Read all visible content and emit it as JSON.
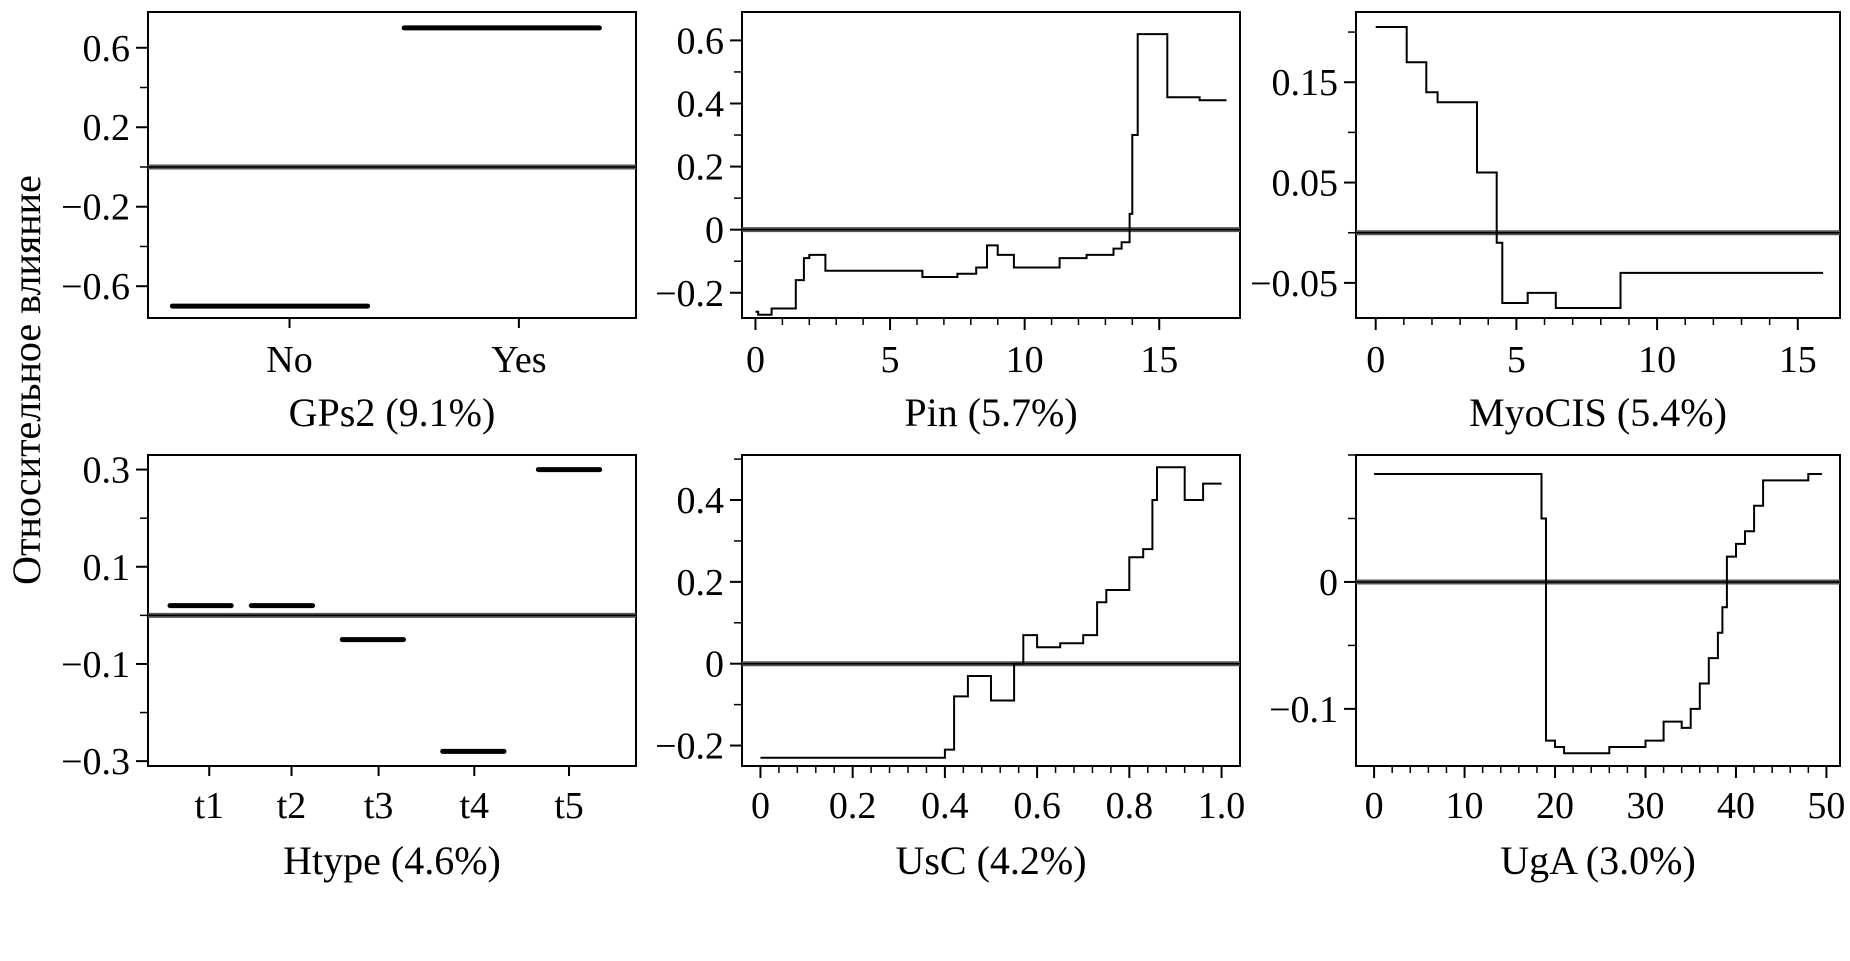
{
  "figure": {
    "ylabel": "Относительное влияние"
  },
  "chart_data": [
    {
      "type": "step",
      "xlabel": "GPs2 (9.1%)",
      "categories": [
        "No",
        "Yes"
      ],
      "values": [
        -0.7,
        0.7
      ],
      "ylim": [
        -0.76,
        0.78
      ],
      "yticks": [
        -0.6,
        -0.2,
        0.2,
        0.6
      ],
      "ytick_labels": [
        "−0.6",
        "−0.2",
        "0.2",
        "0.6"
      ],
      "baseline": 0
    },
    {
      "type": "line",
      "xlabel": "Pin (5.7%)",
      "x": [
        0,
        0.1,
        0.6,
        1.3,
        1.5,
        1.8,
        2.0,
        2.6,
        3.5,
        5.0,
        6.2,
        7.5,
        8.2,
        8.6,
        9.0,
        9.6,
        10.5,
        11.3,
        12.3,
        13.3,
        13.6,
        13.9,
        14.0,
        14.2,
        15.1,
        15.3,
        16.5,
        17.5
      ],
      "y": [
        -0.26,
        -0.27,
        -0.25,
        -0.25,
        -0.16,
        -0.09,
        -0.08,
        -0.13,
        -0.13,
        -0.13,
        -0.15,
        -0.14,
        -0.12,
        -0.05,
        -0.08,
        -0.12,
        -0.12,
        -0.09,
        -0.08,
        -0.06,
        -0.04,
        0.05,
        0.3,
        0.62,
        0.62,
        0.42,
        0.41,
        0.41
      ],
      "xlim": [
        -0.5,
        18
      ],
      "ylim": [
        -0.28,
        0.69
      ],
      "xticks": [
        0,
        5,
        10,
        15
      ],
      "yticks": [
        -0.2,
        0,
        0.2,
        0.4,
        0.6
      ],
      "ytick_labels": [
        "−0.2",
        "0",
        "0.2",
        "0.4",
        "0.6"
      ],
      "baseline": 0
    },
    {
      "type": "line",
      "xlabel": "MyoCIS (5.4%)",
      "x": [
        0,
        0.8,
        1.1,
        1.5,
        1.8,
        2.2,
        2.8,
        3.4,
        3.6,
        4.2,
        4.3,
        4.5,
        5.0,
        5.4,
        6.0,
        6.4,
        7.0,
        8.0,
        8.4,
        8.7,
        12.0,
        15.9
      ],
      "y": [
        0.205,
        0.205,
        0.17,
        0.17,
        0.14,
        0.13,
        0.13,
        0.13,
        0.06,
        0.06,
        -0.01,
        -0.07,
        -0.07,
        -0.06,
        -0.06,
        -0.075,
        -0.075,
        -0.075,
        -0.075,
        -0.04,
        -0.04,
        -0.04
      ],
      "xlim": [
        -0.7,
        16.5
      ],
      "ylim": [
        -0.085,
        0.22
      ],
      "xticks": [
        0,
        5,
        10,
        15
      ],
      "yticks": [
        -0.05,
        0.05,
        0.15
      ],
      "ytick_labels": [
        "−0.05",
        "0.05",
        "0.15"
      ],
      "baseline": 0
    },
    {
      "type": "step",
      "xlabel": "Htype (4.6%)",
      "categories": [
        "t1",
        "t2",
        "t3",
        "t4",
        "t5"
      ],
      "values": [
        0.02,
        0.02,
        -0.05,
        -0.28,
        0.3
      ],
      "ylim": [
        -0.31,
        0.33
      ],
      "yticks": [
        -0.3,
        -0.1,
        0.1,
        0.3
      ],
      "ytick_labels": [
        "−0.3",
        "−0.1",
        "0.1",
        "0.3"
      ],
      "baseline": 0
    },
    {
      "type": "line",
      "xlabel": "UsC (4.2%)",
      "x": [
        0,
        0.38,
        0.4,
        0.42,
        0.45,
        0.48,
        0.5,
        0.54,
        0.55,
        0.57,
        0.6,
        0.65,
        0.7,
        0.73,
        0.75,
        0.8,
        0.83,
        0.85,
        0.86,
        0.88,
        0.92,
        0.96,
        1.0
      ],
      "y": [
        -0.23,
        -0.23,
        -0.21,
        -0.08,
        -0.03,
        -0.03,
        -0.09,
        -0.09,
        0.0,
        0.07,
        0.04,
        0.05,
        0.07,
        0.15,
        0.18,
        0.26,
        0.28,
        0.4,
        0.48,
        0.48,
        0.4,
        0.44,
        0.44
      ],
      "xlim": [
        -0.04,
        1.04
      ],
      "ylim": [
        -0.25,
        0.51
      ],
      "xticks": [
        0,
        0.2,
        0.4,
        0.6,
        0.8,
        1.0
      ],
      "xtick_labels": [
        "0",
        "0.2",
        "0.4",
        "0.6",
        "0.8",
        "1.0"
      ],
      "yticks": [
        -0.2,
        0,
        0.2,
        0.4
      ],
      "ytick_labels": [
        "−0.2",
        "0",
        "0.2",
        "0.4"
      ],
      "baseline": 0
    },
    {
      "type": "line",
      "xlabel": "UgA (3.0%)",
      "x": [
        0,
        18,
        18.5,
        19,
        20,
        21,
        22,
        24,
        26,
        28,
        30,
        32,
        33,
        34,
        35,
        36,
        37,
        38,
        38.5,
        39,
        40,
        41,
        42,
        43,
        44,
        46,
        48,
        49.5
      ],
      "y": [
        0.085,
        0.085,
        0.05,
        -0.125,
        -0.13,
        -0.135,
        -0.135,
        -0.135,
        -0.13,
        -0.13,
        -0.125,
        -0.11,
        -0.11,
        -0.115,
        -0.1,
        -0.08,
        -0.06,
        -0.04,
        -0.02,
        0.02,
        0.03,
        0.04,
        0.06,
        0.08,
        0.08,
        0.08,
        0.085,
        0.085
      ],
      "xlim": [
        -2,
        51.5
      ],
      "ylim": [
        -0.145,
        0.1
      ],
      "xticks": [
        0,
        10,
        20,
        30,
        40,
        50
      ],
      "yticks": [
        -0.1,
        0
      ],
      "ytick_labels": [
        "−0.1",
        "0"
      ],
      "baseline": 0
    }
  ]
}
